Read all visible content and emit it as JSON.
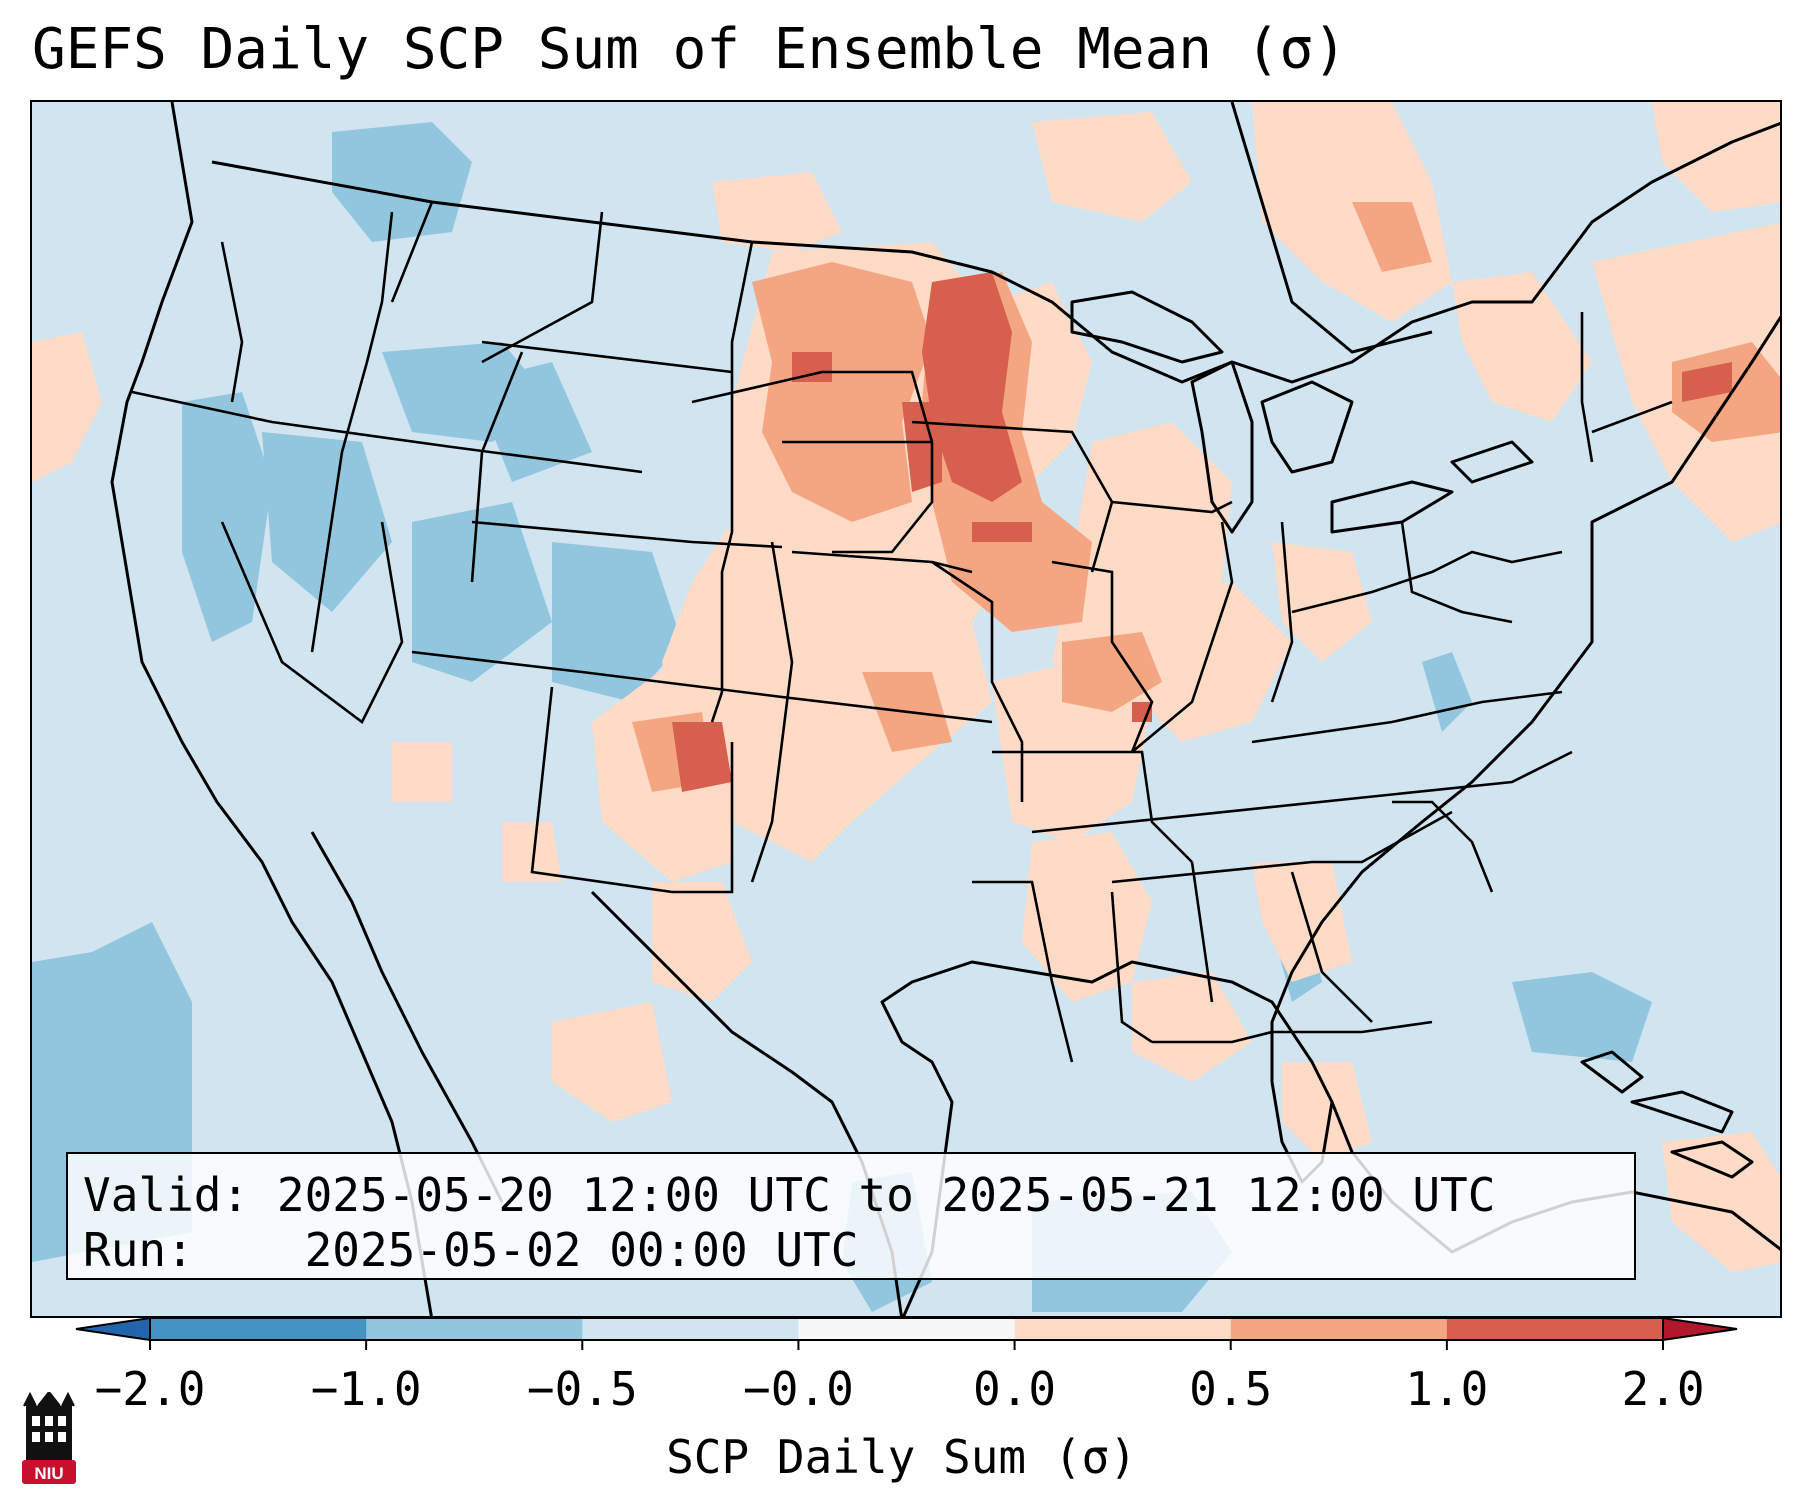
{
  "title": "GEFS Daily SCP Sum of Ensemble Mean (σ)",
  "info": {
    "valid_label": "Valid:",
    "valid_value": "2025-05-20 12:00 UTC to 2025-05-21 12:00 UTC",
    "run_label": "Run:",
    "run_value": "2025-05-02 00:00 UTC"
  },
  "colorbar": {
    "label": "SCP Daily Sum (σ)",
    "ticks": [
      "−2.0",
      "−1.0",
      "−0.5",
      "−0.0",
      "0.0",
      "0.5",
      "1.0",
      "2.0"
    ],
    "bins": [
      {
        "range": "< -2.0",
        "color": "#2166ac"
      },
      {
        "range": "-2.0 to -1.0",
        "color": "#4393c3"
      },
      {
        "range": "-1.0 to -0.5",
        "color": "#92c5de"
      },
      {
        "range": "-0.5 to -0.0",
        "color": "#d1e5f0"
      },
      {
        "range": "-0.0 to 0.0",
        "color": "#f7f7f7"
      },
      {
        "range": "0.0 to 0.5",
        "color": "#fddbc7"
      },
      {
        "range": "0.5 to 1.0",
        "color": "#f4a582"
      },
      {
        "range": "1.0 to 2.0",
        "color": "#d6604d"
      },
      {
        "range": "> 2.0",
        "color": "#b2182b"
      }
    ]
  },
  "logo": {
    "text": "NIU",
    "icon": "university-tower-icon",
    "color": "#c8102e"
  }
}
